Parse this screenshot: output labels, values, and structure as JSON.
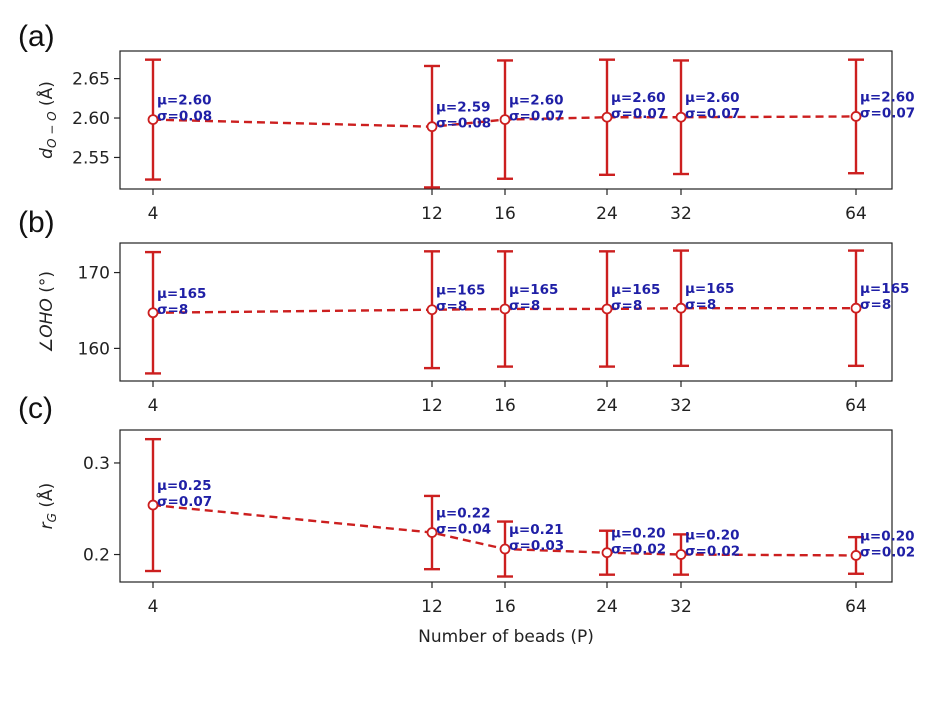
{
  "chart_data": [
    {
      "panel": "(a)",
      "type": "line",
      "ylabel_base": "d",
      "ylabel_sub": "O − O",
      "ylabel_unit": "(Å)",
      "x": [
        4,
        12,
        16,
        24,
        32,
        64
      ],
      "xtick_labels": [
        "4",
        "12",
        "16",
        "24",
        "32",
        "64"
      ],
      "ylim": [
        2.51,
        2.685
      ],
      "yticks": [
        2.55,
        2.6,
        2.65
      ],
      "ytick_labels": [
        "2.55",
        "2.60",
        "2.65"
      ],
      "series": [
        {
          "values": [
            2.598,
            2.589,
            2.598,
            2.601,
            2.601,
            2.602
          ],
          "err": [
            0.076,
            0.077,
            0.075,
            0.073,
            0.072,
            0.072
          ],
          "mu_labels": [
            "μ=2.60",
            "μ=2.59",
            "μ=2.60",
            "μ=2.60",
            "μ=2.60",
            "μ=2.60"
          ],
          "sigma_labels": [
            "σ=0.08",
            "σ=0.08",
            "σ=0.07",
            "σ=0.07",
            "σ=0.07",
            "σ=0.07"
          ],
          "color": "#cc1f1f"
        }
      ]
    },
    {
      "panel": "(b)",
      "type": "line",
      "ylabel_base": "∠OHO",
      "ylabel_sub": "",
      "ylabel_unit": "(°)",
      "x": [
        4,
        12,
        16,
        24,
        32,
        64
      ],
      "xtick_labels": [
        "4",
        "12",
        "16",
        "24",
        "32",
        "64"
      ],
      "ylim": [
        155.7,
        173.9
      ],
      "yticks": [
        160,
        170
      ],
      "ytick_labels": [
        "160",
        "170"
      ],
      "series": [
        {
          "values": [
            164.7,
            165.1,
            165.2,
            165.2,
            165.3,
            165.3
          ],
          "err": [
            8,
            7.7,
            7.6,
            7.6,
            7.6,
            7.6
          ],
          "mu_labels": [
            "μ=165",
            "μ=165",
            "μ=165",
            "μ=165",
            "μ=165",
            "μ=165"
          ],
          "sigma_labels": [
            "σ=8",
            "σ=8",
            "σ=8",
            "σ=8",
            "σ=8",
            "σ=8"
          ],
          "color": "#cc1f1f"
        }
      ]
    },
    {
      "panel": "(c)",
      "type": "line",
      "ylabel_base": "r",
      "ylabel_sub": "G",
      "ylabel_unit": "(Å)",
      "xlabel": "Number of beads (P)",
      "x": [
        4,
        12,
        16,
        24,
        32,
        64
      ],
      "xtick_labels": [
        "4",
        "12",
        "16",
        "24",
        "32",
        "64"
      ],
      "ylim": [
        0.17,
        0.336
      ],
      "yticks": [
        0.2,
        0.3
      ],
      "ytick_labels": [
        "0.2",
        "0.3"
      ],
      "series": [
        {
          "values": [
            0.254,
            0.224,
            0.206,
            0.202,
            0.2,
            0.199
          ],
          "err": [
            0.072,
            0.04,
            0.03,
            0.024,
            0.022,
            0.02
          ],
          "mu_labels": [
            "μ=0.25",
            "μ=0.22",
            "μ=0.21",
            "μ=0.20",
            "μ=0.20",
            "μ=0.20"
          ],
          "sigma_labels": [
            "σ=0.07",
            "σ=0.04",
            "σ=0.03",
            "σ=0.02",
            "σ=0.02",
            "σ=0.02"
          ],
          "color": "#cc1f1f"
        }
      ]
    }
  ],
  "colors": {
    "line": "#cc1f1f",
    "annotation": "#1f1fa6",
    "axes": "#222222"
  }
}
